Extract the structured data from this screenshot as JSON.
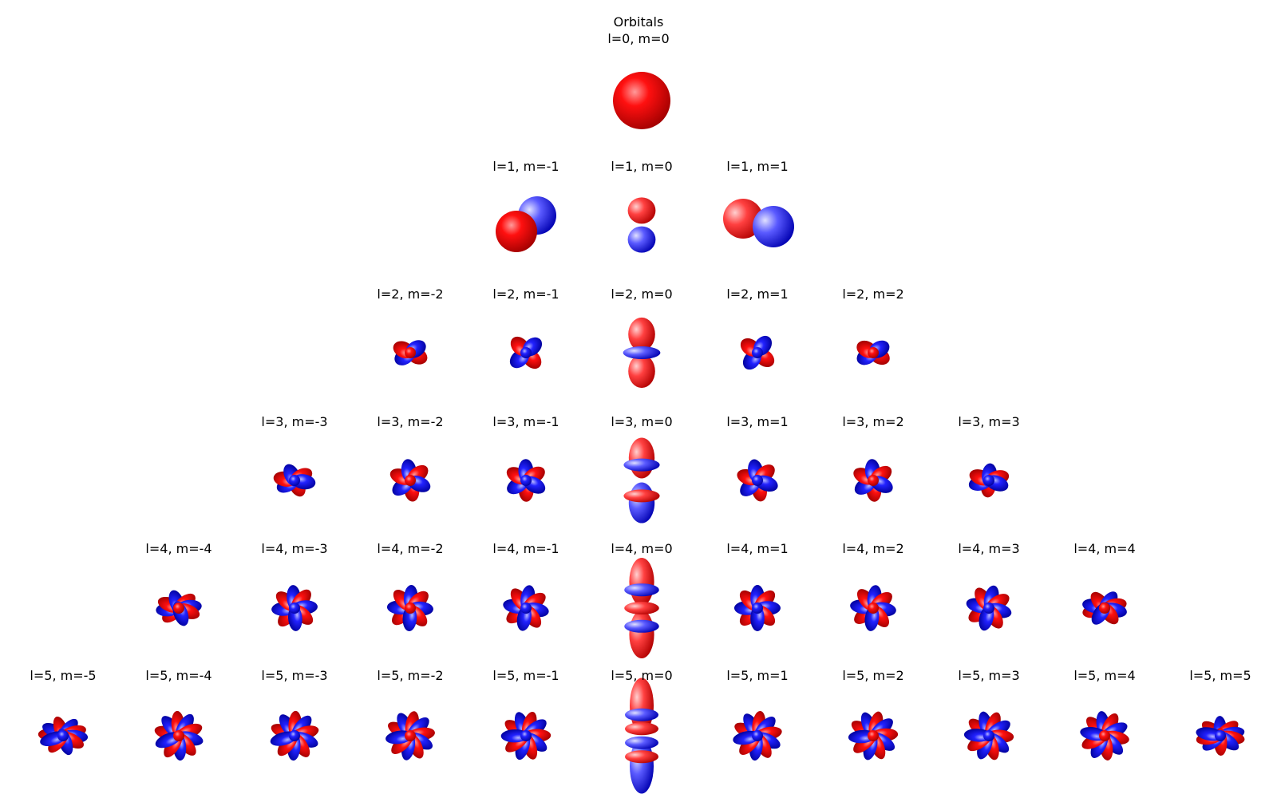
{
  "title": "Orbitals",
  "colors": {
    "positive": "#ff0000",
    "negative": "#0000ff"
  },
  "orbitals": [
    {
      "l": 0,
      "m": 0,
      "label": "l=0, m=0"
    },
    {
      "l": 1,
      "m": -1,
      "label": "l=1, m=-1"
    },
    {
      "l": 1,
      "m": 0,
      "label": "l=1, m=0"
    },
    {
      "l": 1,
      "m": 1,
      "label": "l=1, m=1"
    },
    {
      "l": 2,
      "m": -2,
      "label": "l=2, m=-2"
    },
    {
      "l": 2,
      "m": -1,
      "label": "l=2, m=-1"
    },
    {
      "l": 2,
      "m": 0,
      "label": "l=2, m=0"
    },
    {
      "l": 2,
      "m": 1,
      "label": "l=2, m=1"
    },
    {
      "l": 2,
      "m": 2,
      "label": "l=2, m=2"
    },
    {
      "l": 3,
      "m": -3,
      "label": "l=3, m=-3"
    },
    {
      "l": 3,
      "m": -2,
      "label": "l=3, m=-2"
    },
    {
      "l": 3,
      "m": -1,
      "label": "l=3, m=-1"
    },
    {
      "l": 3,
      "m": 0,
      "label": "l=3, m=0"
    },
    {
      "l": 3,
      "m": 1,
      "label": "l=3, m=1"
    },
    {
      "l": 3,
      "m": 2,
      "label": "l=3, m=2"
    },
    {
      "l": 3,
      "m": 3,
      "label": "l=3, m=3"
    },
    {
      "l": 4,
      "m": -4,
      "label": "l=4, m=-4"
    },
    {
      "l": 4,
      "m": -3,
      "label": "l=4, m=-3"
    },
    {
      "l": 4,
      "m": -2,
      "label": "l=4, m=-2"
    },
    {
      "l": 4,
      "m": -1,
      "label": "l=4, m=-1"
    },
    {
      "l": 4,
      "m": 0,
      "label": "l=4, m=0"
    },
    {
      "l": 4,
      "m": 1,
      "label": "l=4, m=1"
    },
    {
      "l": 4,
      "m": 2,
      "label": "l=4, m=2"
    },
    {
      "l": 4,
      "m": 3,
      "label": "l=4, m=3"
    },
    {
      "l": 4,
      "m": 4,
      "label": "l=4, m=4"
    },
    {
      "l": 5,
      "m": -5,
      "label": "l=5, m=-5"
    },
    {
      "l": 5,
      "m": -4,
      "label": "l=5, m=-4"
    },
    {
      "l": 5,
      "m": -3,
      "label": "l=5, m=-3"
    },
    {
      "l": 5,
      "m": -2,
      "label": "l=5, m=-2"
    },
    {
      "l": 5,
      "m": -1,
      "label": "l=5, m=-1"
    },
    {
      "l": 5,
      "m": 0,
      "label": "l=5, m=0"
    },
    {
      "l": 5,
      "m": 1,
      "label": "l=5, m=1"
    },
    {
      "l": 5,
      "m": 2,
      "label": "l=5, m=2"
    },
    {
      "l": 5,
      "m": 3,
      "label": "l=5, m=3"
    },
    {
      "l": 5,
      "m": 4,
      "label": "l=5, m=4"
    },
    {
      "l": 5,
      "m": 5,
      "label": "l=5, m=5"
    }
  ]
}
